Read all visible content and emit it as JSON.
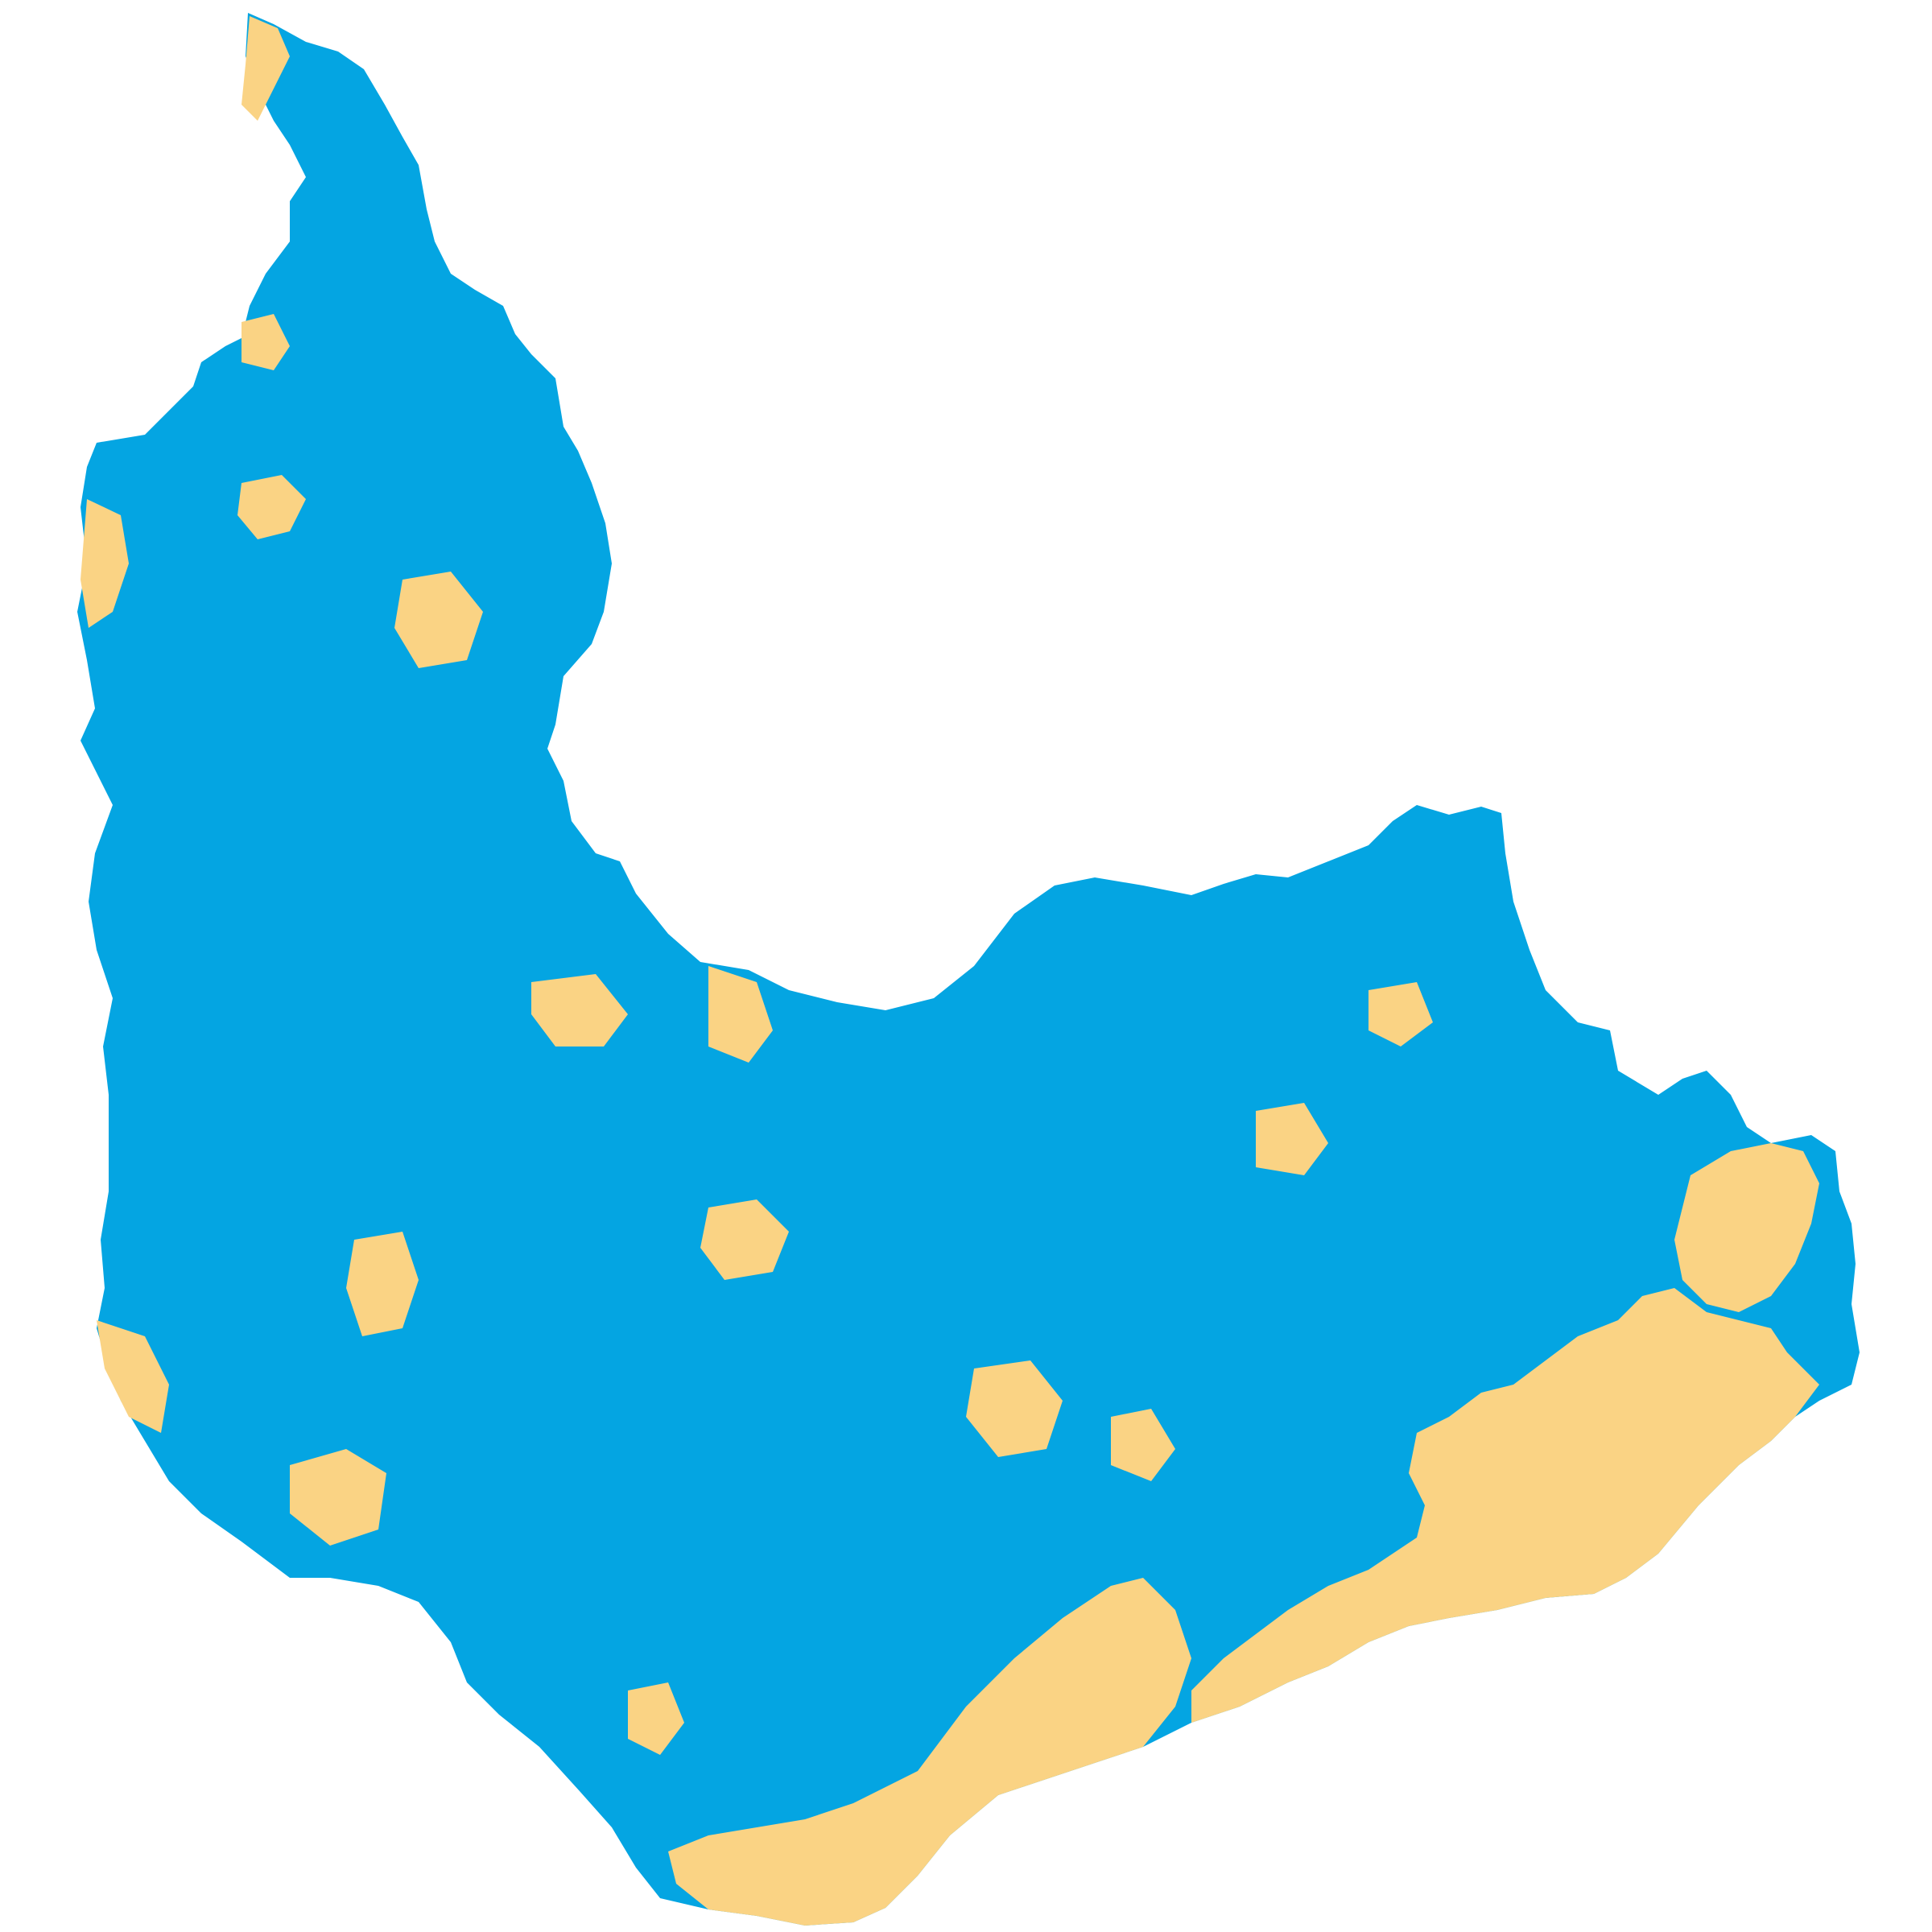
{
  "map": {
    "colors": {
      "background": "#ffffff",
      "basin": "#04a5e2",
      "land": "#fad384"
    },
    "layers": [
      {
        "name": "basin-water",
        "color": "#04a5e2"
      },
      {
        "name": "land-patches",
        "color": "#fad384"
      }
    ]
  }
}
